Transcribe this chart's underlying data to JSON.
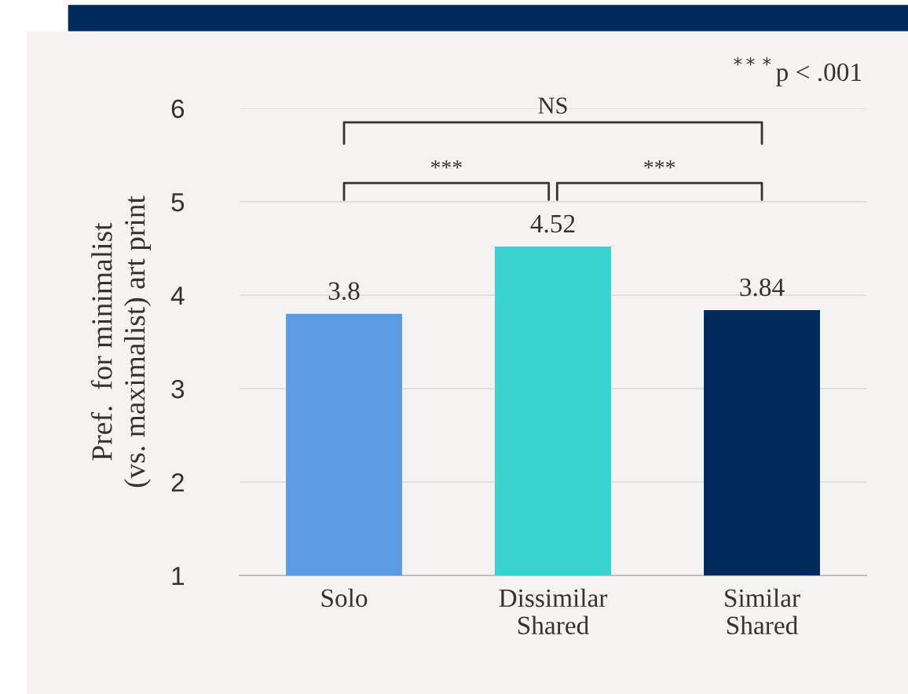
{
  "chart_data": {
    "type": "bar",
    "categories": [
      "Solo",
      "Dissimilar\nShared",
      "Similar\nShared"
    ],
    "values": [
      3.8,
      4.52,
      3.84
    ],
    "colors": [
      "#5b9be3",
      "#38d3cf",
      "#002b5c"
    ],
    "ylabel": "Pref.  for minimalist\n(vs. maximalist) art print",
    "ylim": [
      1,
      6
    ],
    "yticks": [
      1,
      2,
      3,
      4,
      5,
      6
    ],
    "grid": "y",
    "data_labels": true,
    "annotations": [
      "NS",
      "***",
      "***",
      "$^{***}$p < .001"
    ]
  }
}
